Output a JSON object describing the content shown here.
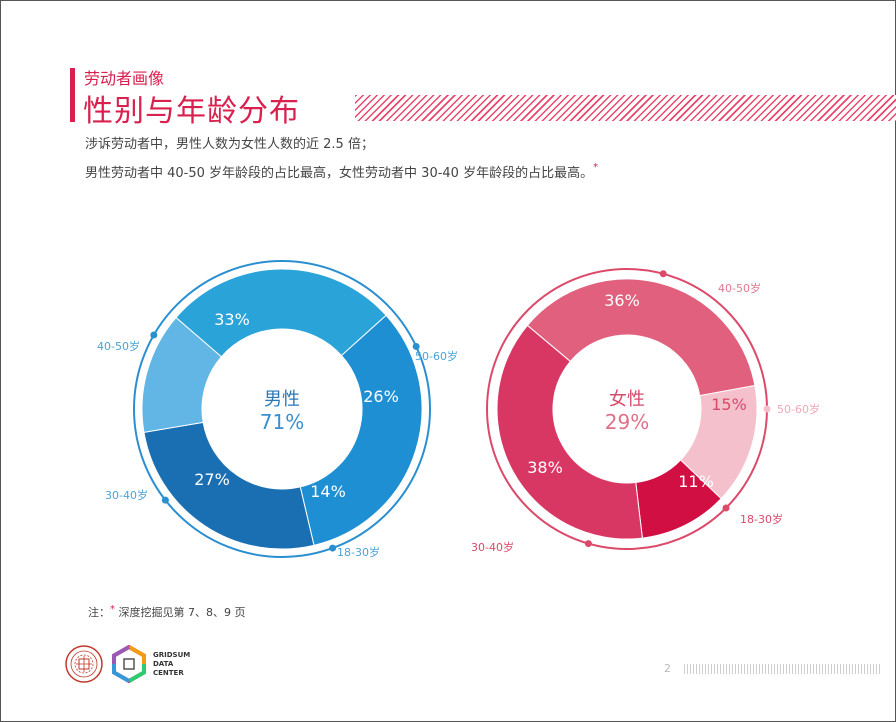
{
  "header": {
    "kicker": "劳动者画像",
    "title": "性别与年龄分布"
  },
  "summary": {
    "line1": "涉诉劳动者中，男性人数为女性人数的近 2.5 倍；",
    "line2": "男性劳动者中 40-50 岁年龄段的占比最高，女性劳动者中 30-40 岁年龄段的占比最高。",
    "star": "*"
  },
  "chart_data": [
    {
      "type": "pie",
      "center_label": "男性",
      "center_value": "71%",
      "categories": [
        "40-50岁",
        "50-60岁",
        "18-30岁",
        "30-40岁"
      ],
      "values": [
        33,
        26,
        14,
        27
      ],
      "value_labels": [
        "33%",
        "26%",
        "14%",
        "27%"
      ],
      "colors": [
        "#1f8fd3",
        "#1a6fb3",
        "#62b6e5",
        "#2aa3d9"
      ],
      "accent": "#2a8fd0"
    },
    {
      "type": "pie",
      "center_label": "女性",
      "center_value": "29%",
      "categories": [
        "40-50岁",
        "50-60岁",
        "18-30岁",
        "30-40岁"
      ],
      "values": [
        36,
        15,
        11,
        38
      ],
      "value_labels": [
        "36%",
        "15%",
        "11%",
        "38%"
      ],
      "colors": [
        "#e0607e",
        "#f4c0cc",
        "#d10f43",
        "#d93763"
      ],
      "accent": "#dc4a6a"
    }
  ],
  "note": {
    "prefix": "注：",
    "star": "*",
    "text": "深度挖掘见第 7、8、9 页"
  },
  "footer": {
    "page_number": "2",
    "logo_text": [
      "GRIDSUM",
      "DATA",
      "CENTER"
    ]
  }
}
